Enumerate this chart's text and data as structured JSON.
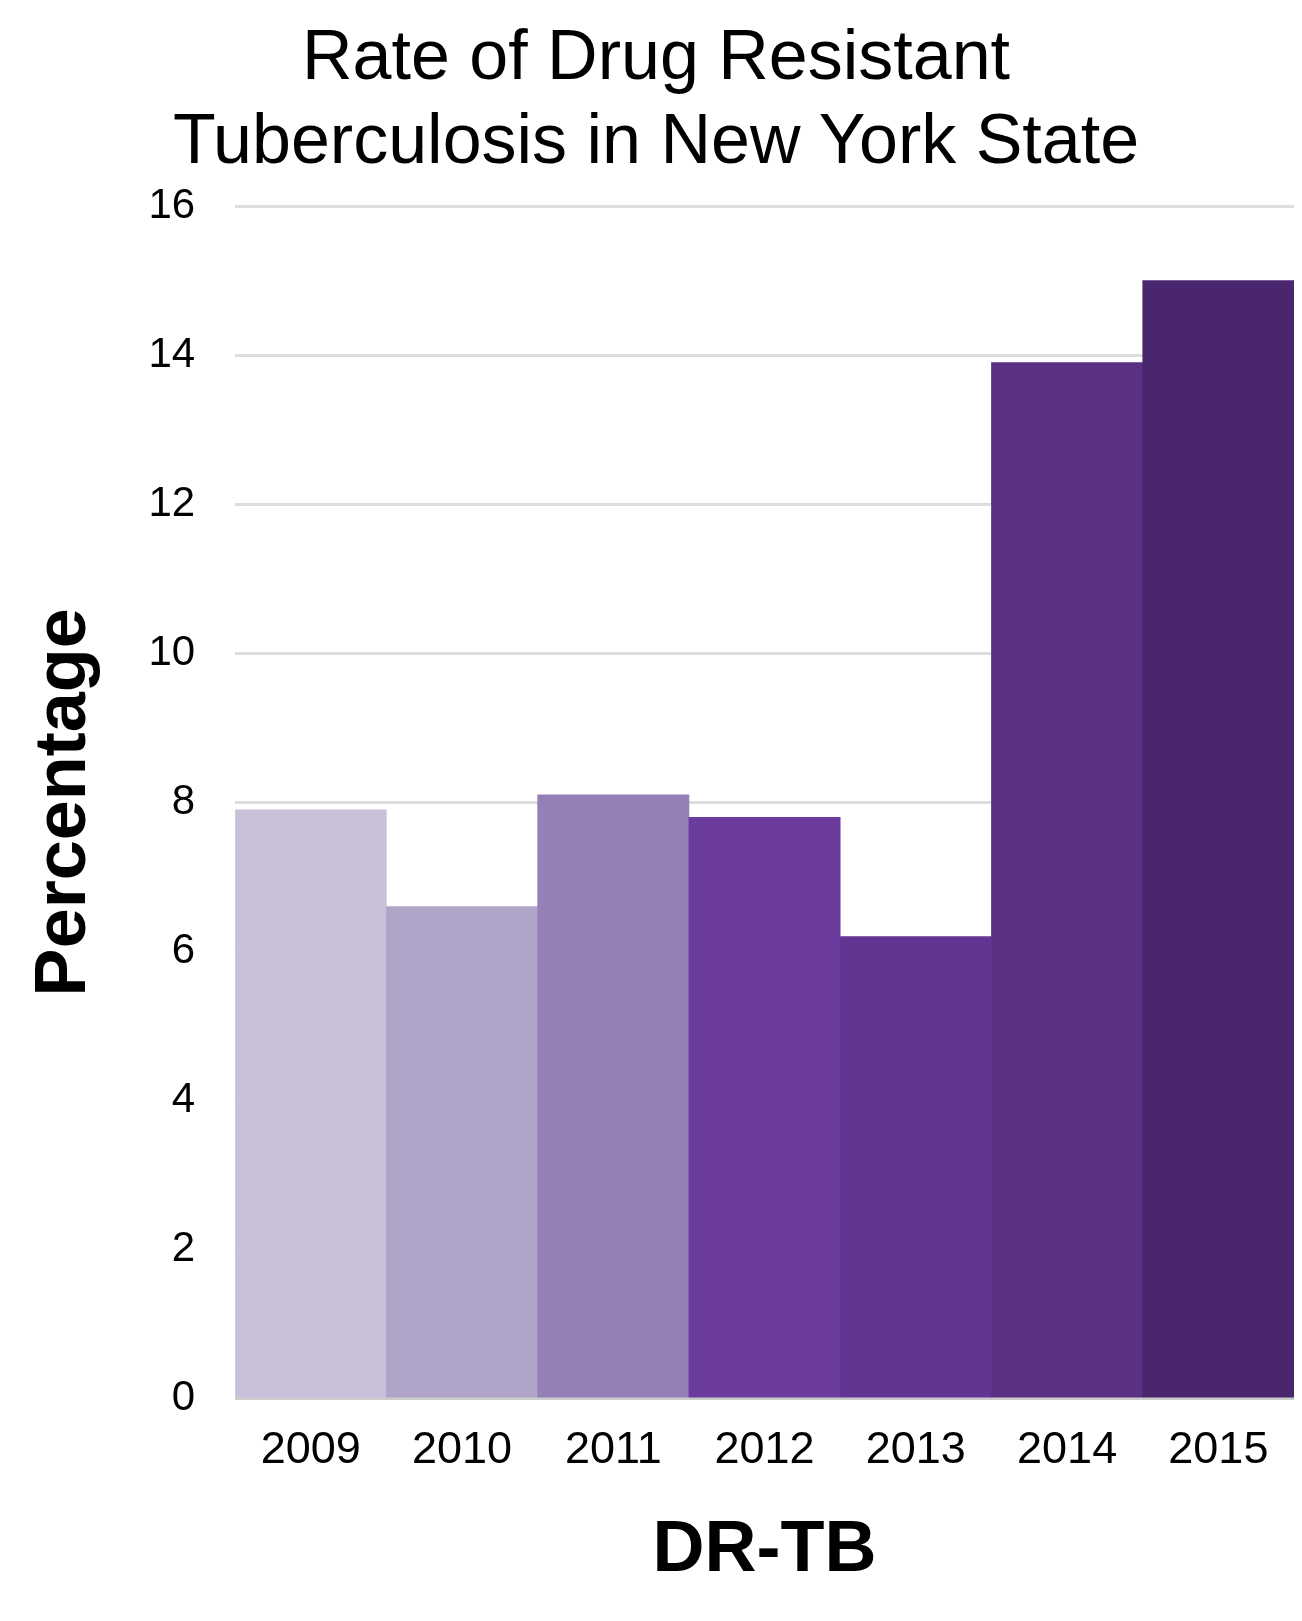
{
  "chart_data": {
    "type": "bar",
    "title": "Rate of Drug Resistant Tuberculosis in New York State",
    "xlabel": "DR-TB",
    "ylabel": "Percentage",
    "categories": [
      "2009",
      "2010",
      "2011",
      "2012",
      "2013",
      "2014",
      "2015"
    ],
    "values": [
      7.9,
      6.6,
      8.1,
      7.8,
      6.2,
      13.9,
      15.0
    ],
    "colors": [
      "#c9c1da",
      "#b0a5c9",
      "#9480b7",
      "#6c3b9e",
      "#633592",
      "#5a3085",
      "#4a266f"
    ],
    "ylim": [
      0,
      16
    ],
    "yticks": [
      0,
      2,
      4,
      6,
      8,
      10,
      12,
      14,
      16
    ],
    "grid": "y",
    "legend": false
  }
}
